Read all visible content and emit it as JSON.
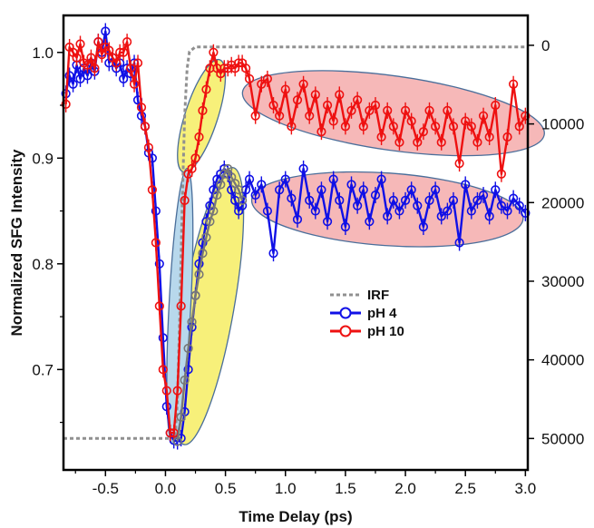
{
  "chart_data": {
    "type": "line",
    "title": "",
    "xlabel": "Time Delay (ps)",
    "ylabel": "Normalized SFG Intensity",
    "xlim": [
      -0.85,
      3.02
    ],
    "ylim": [
      0.605,
      1.035
    ],
    "x_ticks": [
      "-0.5",
      "0.0",
      "0.5",
      "1.0",
      "1.5",
      "2.0",
      "2.5",
      "3.0"
    ],
    "x_tick_values": [
      -0.5,
      0.0,
      0.5,
      1.0,
      1.5,
      2.0,
      2.5,
      3.0
    ],
    "y_ticks": [
      "0.7",
      "0.8",
      "0.9",
      "1.0"
    ],
    "y_tick_values": [
      0.7,
      0.8,
      0.9,
      1.0
    ],
    "y2_ticks": [
      "0",
      "10000",
      "20000",
      "30000",
      "40000",
      "50000"
    ],
    "y2_tick_values": [
      0,
      10000,
      20000,
      30000,
      40000,
      50000
    ],
    "y2_range": [
      -3800,
      54000
    ],
    "grid": false,
    "legend_position": "center-right",
    "colors": {
      "irf": "#909090",
      "ph4": "#1010e6",
      "ph10": "#ee1111",
      "highlight_red": "#f6b8b8",
      "highlight_yellow": "#f7f07a",
      "highlight_blue": "#b8d8ec",
      "gray_curve": "#777777"
    },
    "series": [
      {
        "name": "IRF",
        "style": "dashed",
        "axis": "right",
        "x": [
          -0.85,
          0.08,
          0.1,
          0.12,
          0.14,
          0.16,
          0.18,
          0.2,
          0.25,
          3.0
        ],
        "values": [
          50000,
          50000,
          45000,
          34000,
          20000,
          9000,
          3000,
          800,
          200,
          200
        ]
      },
      {
        "name": "pH 4",
        "style": "line-markers",
        "axis": "left",
        "x": [
          -0.83,
          -0.8,
          -0.77,
          -0.74,
          -0.71,
          -0.68,
          -0.65,
          -0.62,
          -0.59,
          -0.56,
          -0.53,
          -0.5,
          -0.47,
          -0.44,
          -0.41,
          -0.38,
          -0.35,
          -0.32,
          -0.29,
          -0.26,
          -0.23,
          -0.2,
          -0.17,
          -0.14,
          -0.11,
          -0.08,
          -0.05,
          -0.02,
          0.01,
          0.04,
          0.07,
          0.1,
          0.13,
          0.16,
          0.19,
          0.22,
          0.25,
          0.28,
          0.31,
          0.34,
          0.37,
          0.4,
          0.43,
          0.46,
          0.49,
          0.52,
          0.55,
          0.58,
          0.61,
          0.64,
          0.67,
          0.7,
          0.75,
          0.8,
          0.85,
          0.9,
          0.95,
          1.0,
          1.05,
          1.1,
          1.15,
          1.2,
          1.25,
          1.3,
          1.35,
          1.4,
          1.45,
          1.5,
          1.55,
          1.6,
          1.65,
          1.7,
          1.75,
          1.8,
          1.85,
          1.9,
          1.95,
          2.0,
          2.05,
          2.1,
          2.15,
          2.2,
          2.25,
          2.3,
          2.35,
          2.4,
          2.45,
          2.5,
          2.55,
          2.6,
          2.65,
          2.7,
          2.75,
          2.8,
          2.85,
          2.9,
          2.95,
          3.0
        ],
        "values": [
          0.961,
          0.978,
          0.97,
          0.988,
          0.975,
          0.985,
          0.978,
          0.99,
          0.982,
          1.01,
          1.0,
          1.02,
          0.99,
          0.995,
          0.985,
          0.99,
          0.975,
          0.985,
          0.98,
          0.99,
          0.955,
          0.94,
          0.93,
          0.905,
          0.9,
          0.85,
          0.8,
          0.73,
          0.665,
          0.64,
          0.633,
          0.632,
          0.635,
          0.66,
          0.7,
          0.74,
          0.77,
          0.8,
          0.82,
          0.84,
          0.855,
          0.87,
          0.88,
          0.885,
          0.89,
          0.885,
          0.87,
          0.86,
          0.85,
          0.855,
          0.87,
          0.88,
          0.865,
          0.875,
          0.85,
          0.81,
          0.87,
          0.88,
          0.862,
          0.842,
          0.89,
          0.86,
          0.85,
          0.87,
          0.84,
          0.88,
          0.86,
          0.835,
          0.875,
          0.855,
          0.87,
          0.84,
          0.865,
          0.88,
          0.845,
          0.86,
          0.85,
          0.86,
          0.87,
          0.855,
          0.835,
          0.86,
          0.87,
          0.845,
          0.85,
          0.86,
          0.82,
          0.875,
          0.85,
          0.86,
          0.865,
          0.845,
          0.87,
          0.855,
          0.85,
          0.862,
          0.855,
          0.848
        ]
      },
      {
        "name": "pH 10",
        "style": "line-markers",
        "axis": "left",
        "x": [
          -0.83,
          -0.8,
          -0.77,
          -0.74,
          -0.71,
          -0.68,
          -0.65,
          -0.62,
          -0.59,
          -0.56,
          -0.53,
          -0.5,
          -0.47,
          -0.44,
          -0.41,
          -0.38,
          -0.35,
          -0.32,
          -0.29,
          -0.26,
          -0.23,
          -0.2,
          -0.17,
          -0.14,
          -0.11,
          -0.08,
          -0.05,
          -0.02,
          0.01,
          0.04,
          0.07,
          0.1,
          0.13,
          0.16,
          0.19,
          0.22,
          0.25,
          0.28,
          0.31,
          0.34,
          0.37,
          0.4,
          0.43,
          0.46,
          0.49,
          0.52,
          0.55,
          0.58,
          0.61,
          0.64,
          0.67,
          0.7,
          0.75,
          0.8,
          0.85,
          0.9,
          0.95,
          1.0,
          1.05,
          1.1,
          1.15,
          1.2,
          1.25,
          1.3,
          1.35,
          1.4,
          1.45,
          1.5,
          1.55,
          1.6,
          1.65,
          1.7,
          1.75,
          1.8,
          1.85,
          1.9,
          1.95,
          2.0,
          2.05,
          2.1,
          2.15,
          2.2,
          2.25,
          2.3,
          2.35,
          2.4,
          2.45,
          2.5,
          2.55,
          2.6,
          2.65,
          2.7,
          2.75,
          2.8,
          2.85,
          2.9,
          2.95,
          3.0
        ],
        "values": [
          0.951,
          1.005,
          1.0,
          0.995,
          1.008,
          0.99,
          0.988,
          0.995,
          0.985,
          1.01,
          0.998,
          1.005,
          1.002,
          0.995,
          0.99,
          1.0,
          1.0,
          1.01,
          0.985,
          0.97,
          0.99,
          0.948,
          0.93,
          0.91,
          0.87,
          0.82,
          0.76,
          0.7,
          0.68,
          0.64,
          0.64,
          0.68,
          0.76,
          0.86,
          0.885,
          0.89,
          0.9,
          0.92,
          0.945,
          0.965,
          0.985,
          1.0,
          0.985,
          0.98,
          0.985,
          0.985,
          0.988,
          0.985,
          0.99,
          0.99,
          0.985,
          0.975,
          0.94,
          0.97,
          0.975,
          0.95,
          0.94,
          0.965,
          0.93,
          0.955,
          0.97,
          0.94,
          0.96,
          0.925,
          0.95,
          0.935,
          0.96,
          0.93,
          0.945,
          0.955,
          0.93,
          0.945,
          0.95,
          0.92,
          0.945,
          0.93,
          0.915,
          0.945,
          0.935,
          0.915,
          0.925,
          0.945,
          0.93,
          0.915,
          0.945,
          0.93,
          0.895,
          0.935,
          0.93,
          0.915,
          0.94,
          0.92,
          0.95,
          0.885,
          0.92,
          0.97,
          0.93,
          0.94
        ]
      },
      {
        "name": "",
        "style": "line-markers-gray",
        "axis": "left",
        "x": [
          0.1,
          0.13,
          0.16,
          0.19,
          0.22,
          0.25,
          0.28,
          0.31,
          0.34,
          0.37,
          0.4,
          0.43,
          0.46,
          0.49,
          0.52,
          0.55,
          0.58,
          0.61,
          0.64
        ],
        "values": [
          0.632,
          0.655,
          0.69,
          0.72,
          0.745,
          0.77,
          0.79,
          0.81,
          0.825,
          0.84,
          0.85,
          0.865,
          0.875,
          0.885,
          0.89,
          0.882,
          0.876,
          0.87,
          0.86
        ]
      }
    ],
    "ellipses_note": "",
    "legend": [
      "IRF",
      "pH 4",
      "pH 10"
    ]
  }
}
